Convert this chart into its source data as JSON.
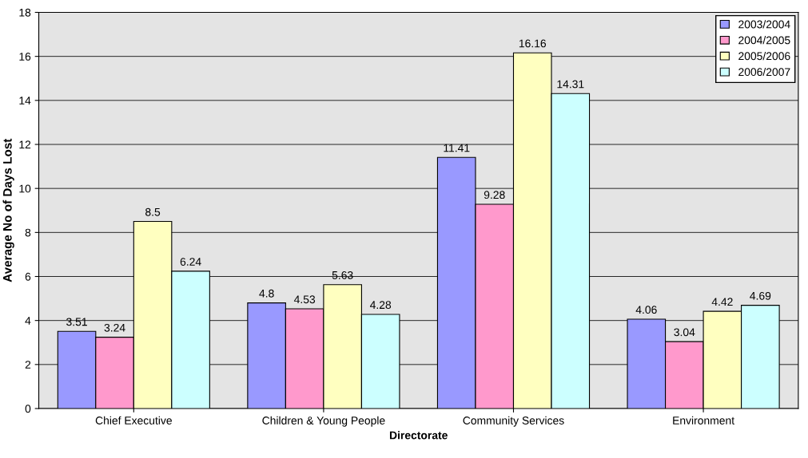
{
  "chart_data": {
    "type": "bar",
    "xlabel": "Directorate",
    "ylabel": "Average No of Days Lost",
    "categories": [
      "Chief Executive",
      "Children & Young People",
      "Community Services",
      "Environment"
    ],
    "series": [
      {
        "name": "2003/2004",
        "color": "#9999ff",
        "values": [
          3.51,
          4.8,
          11.41,
          4.06
        ]
      },
      {
        "name": "2004/2005",
        "color": "#ff99cc",
        "values": [
          3.24,
          4.53,
          9.28,
          3.04
        ]
      },
      {
        "name": "2005/2006",
        "color": "#ffffc0",
        "values": [
          8.5,
          5.63,
          16.16,
          4.42
        ]
      },
      {
        "name": "2006/2007",
        "color": "#ccffff",
        "values": [
          6.24,
          4.28,
          14.31,
          4.69
        ]
      }
    ],
    "ylim": [
      0,
      18
    ],
    "yticks": [
      0,
      2,
      4,
      6,
      8,
      10,
      12,
      14,
      16,
      18
    ],
    "grid": "y",
    "legend": "top right",
    "data_labels": true
  }
}
